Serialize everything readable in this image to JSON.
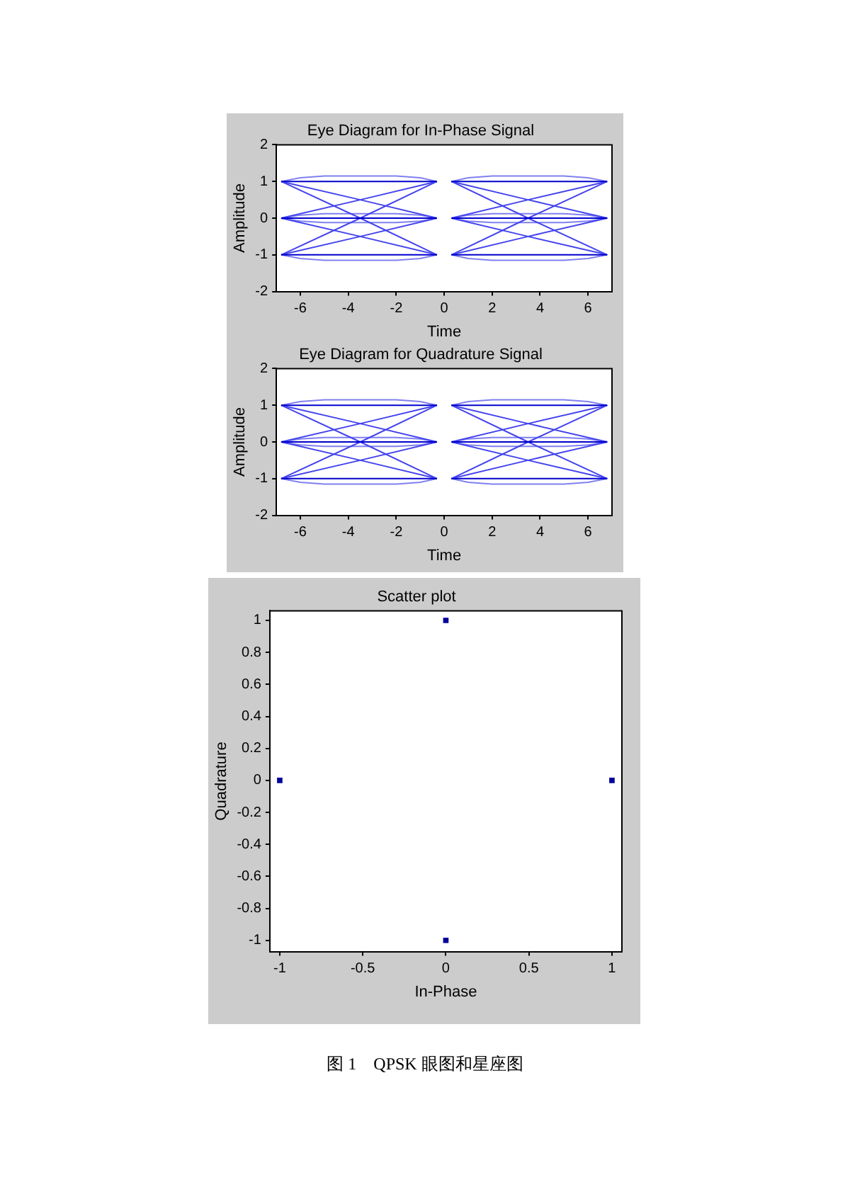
{
  "chart_data": [
    {
      "type": "line",
      "title": "Eye Diagram for In-Phase Signal",
      "xlabel": "Time",
      "ylabel": "Amplitude",
      "xlim": [
        -7,
        7
      ],
      "xticks": [
        -6,
        -4,
        -2,
        0,
        2,
        4,
        6
      ],
      "ylim": [
        -2,
        2
      ],
      "yticks": [
        -2,
        -1,
        0,
        1,
        2
      ],
      "marker": "none",
      "line_style": "solid",
      "x": [
        -6.8,
        -3.5,
        -0.3,
        0,
        0.3,
        3.5,
        6.8
      ],
      "series": [
        {
          "color": "#0000cc",
          "values": [
            1,
            1,
            1,
            null,
            1,
            1,
            1
          ]
        },
        {
          "color": "#0000cc",
          "values": [
            0,
            0,
            0,
            null,
            0,
            0,
            0
          ]
        },
        {
          "color": "#0000cc",
          "values": [
            -1,
            -1,
            -1,
            null,
            -1,
            -1,
            -1
          ]
        },
        {
          "color": "#4444ee",
          "values": [
            1,
            0,
            -1,
            null,
            1,
            0,
            -1
          ]
        },
        {
          "color": "#4444ee",
          "values": [
            -1,
            0,
            1,
            null,
            -1,
            0,
            1
          ]
        },
        {
          "color": "#4444ee",
          "values": [
            1,
            0.5,
            0,
            null,
            1,
            0.5,
            0
          ]
        },
        {
          "color": "#4444ee",
          "values": [
            0,
            0.5,
            1,
            null,
            0,
            0.5,
            1
          ]
        },
        {
          "color": "#4444ee",
          "values": [
            0,
            -0.5,
            -1,
            null,
            0,
            -0.5,
            -1
          ]
        },
        {
          "color": "#4444ee",
          "values": [
            -1,
            -0.5,
            0,
            null,
            -1,
            -0.5,
            0
          ]
        },
        {
          "color": "#8080f0",
          "x": [
            -6.8,
            -6,
            -5,
            -2,
            -1,
            -0.3,
            0,
            0.3,
            1,
            2,
            5,
            6,
            6.8
          ],
          "values": [
            1,
            1.1,
            1.15,
            1.15,
            1.1,
            1,
            null,
            1,
            1.1,
            1.15,
            1.15,
            1.1,
            1
          ]
        },
        {
          "color": "#8080f0",
          "x": [
            -6.8,
            -6,
            -5,
            -2,
            -1,
            -0.3,
            0,
            0.3,
            1,
            2,
            5,
            6,
            6.8
          ],
          "values": [
            -1,
            -1.1,
            -1.15,
            -1.15,
            -1.1,
            -1,
            null,
            -1,
            -1.1,
            -1.15,
            -1.15,
            -1.1,
            -1
          ]
        },
        {
          "color": "#8080f0",
          "x": [
            -6.8,
            -6,
            -5,
            -2,
            -1,
            -0.3,
            0,
            0.3,
            1,
            2,
            5,
            6,
            6.8
          ],
          "values": [
            0,
            0.08,
            0.12,
            0.12,
            0.08,
            0,
            null,
            0,
            0.08,
            0.12,
            0.12,
            0.08,
            0
          ]
        },
        {
          "color": "#8080f0",
          "x": [
            -6.8,
            -6,
            -5,
            -2,
            -1,
            -0.3,
            0,
            0.3,
            1,
            2,
            5,
            6,
            6.8
          ],
          "values": [
            0,
            -0.08,
            -0.12,
            -0.12,
            -0.08,
            0,
            null,
            0,
            -0.08,
            -0.12,
            -0.12,
            -0.08,
            0
          ]
        }
      ]
    },
    {
      "type": "line",
      "title": "Eye Diagram for Quadrature Signal",
      "xlabel": "Time",
      "ylabel": "Amplitude",
      "xlim": [
        -7,
        7
      ],
      "xticks": [
        -6,
        -4,
        -2,
        0,
        2,
        4,
        6
      ],
      "ylim": [
        -2,
        2
      ],
      "yticks": [
        -2,
        -1,
        0,
        1,
        2
      ],
      "marker": "none",
      "line_style": "solid",
      "x": [
        -6.8,
        -3.5,
        -0.3,
        0,
        0.3,
        3.5,
        6.8
      ],
      "series": [
        {
          "color": "#0000cc",
          "values": [
            1,
            1,
            1,
            null,
            1,
            1,
            1
          ]
        },
        {
          "color": "#0000cc",
          "values": [
            0,
            0,
            0,
            null,
            0,
            0,
            0
          ]
        },
        {
          "color": "#0000cc",
          "values": [
            -1,
            -1,
            -1,
            null,
            -1,
            -1,
            -1
          ]
        },
        {
          "color": "#4444ee",
          "values": [
            1,
            0,
            -1,
            null,
            1,
            0,
            -1
          ]
        },
        {
          "color": "#4444ee",
          "values": [
            -1,
            0,
            1,
            null,
            -1,
            0,
            1
          ]
        },
        {
          "color": "#4444ee",
          "values": [
            1,
            0.5,
            0,
            null,
            1,
            0.5,
            0
          ]
        },
        {
          "color": "#4444ee",
          "values": [
            0,
            0.5,
            1,
            null,
            0,
            0.5,
            1
          ]
        },
        {
          "color": "#4444ee",
          "values": [
            0,
            -0.5,
            -1,
            null,
            0,
            -0.5,
            -1
          ]
        },
        {
          "color": "#4444ee",
          "values": [
            -1,
            -0.5,
            0,
            null,
            -1,
            -0.5,
            0
          ]
        },
        {
          "color": "#8080f0",
          "x": [
            -6.8,
            -6,
            -5,
            -2,
            -1,
            -0.3,
            0,
            0.3,
            1,
            2,
            5,
            6,
            6.8
          ],
          "values": [
            1,
            1.1,
            1.15,
            1.15,
            1.1,
            1,
            null,
            1,
            1.1,
            1.15,
            1.15,
            1.1,
            1
          ]
        },
        {
          "color": "#8080f0",
          "x": [
            -6.8,
            -6,
            -5,
            -2,
            -1,
            -0.3,
            0,
            0.3,
            1,
            2,
            5,
            6,
            6.8
          ],
          "values": [
            -1,
            -1.1,
            -1.15,
            -1.15,
            -1.1,
            -1,
            null,
            -1,
            -1.1,
            -1.15,
            -1.15,
            -1.1,
            -1
          ]
        },
        {
          "color": "#8080f0",
          "x": [
            -6.8,
            -6,
            -5,
            -2,
            -1,
            -0.3,
            0,
            0.3,
            1,
            2,
            5,
            6,
            6.8
          ],
          "values": [
            0,
            0.08,
            0.12,
            0.12,
            0.08,
            0,
            null,
            0,
            0.08,
            0.12,
            0.12,
            0.08,
            0
          ]
        },
        {
          "color": "#8080f0",
          "x": [
            -6.8,
            -6,
            -5,
            -2,
            -1,
            -0.3,
            0,
            0.3,
            1,
            2,
            5,
            6,
            6.8
          ],
          "values": [
            0,
            -0.08,
            -0.12,
            -0.12,
            -0.08,
            0,
            null,
            0,
            -0.08,
            -0.12,
            -0.12,
            -0.08,
            0
          ]
        }
      ]
    },
    {
      "type": "scatter",
      "title": "Scatter plot",
      "xlabel": "In-Phase",
      "ylabel": "Quadrature",
      "xlim": [
        -1.06,
        1.06
      ],
      "xticks": [
        -1,
        -0.5,
        0,
        0.5,
        1
      ],
      "ylim": [
        -1.07,
        1.06
      ],
      "yticks": [
        -1,
        -0.8,
        -0.6,
        -0.4,
        -0.2,
        0,
        0.2,
        0.4,
        0.6,
        0.8,
        1
      ],
      "marker": "square",
      "x": [
        -1,
        0,
        1,
        0
      ],
      "values": [
        0,
        1,
        0,
        -1
      ],
      "color": "#000099",
      "annotations": [
        "图 1　QPSK 眼图和星座图"
      ]
    }
  ]
}
